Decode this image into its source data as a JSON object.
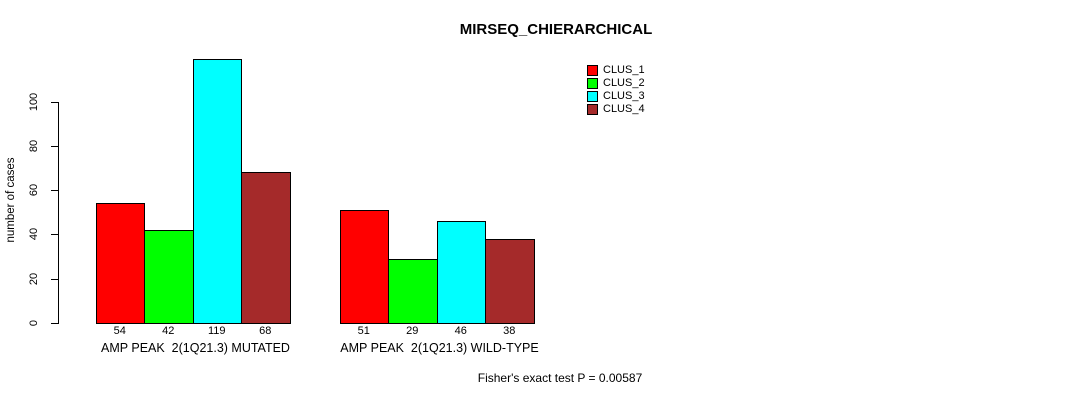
{
  "title": "MIRSEQ_CHIERARCHICAL",
  "chart_data": {
    "type": "bar",
    "title": "MIRSEQ_CHIERARCHICAL",
    "xlabel": "",
    "ylabel": "number of cases",
    "categories": [
      "AMP PEAK  2(1Q21.3) MUTATED",
      "AMP PEAK  2(1Q21.3) WILD-TYPE"
    ],
    "series": [
      {
        "name": "CLUS_1",
        "color": "#ff0000",
        "values": [
          54,
          51
        ]
      },
      {
        "name": "CLUS_2",
        "color": "#00ff00",
        "values": [
          42,
          29
        ]
      },
      {
        "name": "CLUS_3",
        "color": "#00ffff",
        "values": [
          119,
          46
        ]
      },
      {
        "name": "CLUS_4",
        "color": "#a52a2a",
        "values": [
          68,
          38
        ]
      }
    ],
    "bar_value_labels_shown": true,
    "yticks": [
      0,
      20,
      40,
      60,
      80,
      100
    ],
    "ylim": [
      0,
      119
    ],
    "grid": false,
    "legend_position": "top-right",
    "bar_border_color": "#000000",
    "text_color": "#000000",
    "background_color": "#ffffff",
    "annotation": "Fisher's exact test P = 0.00587"
  }
}
